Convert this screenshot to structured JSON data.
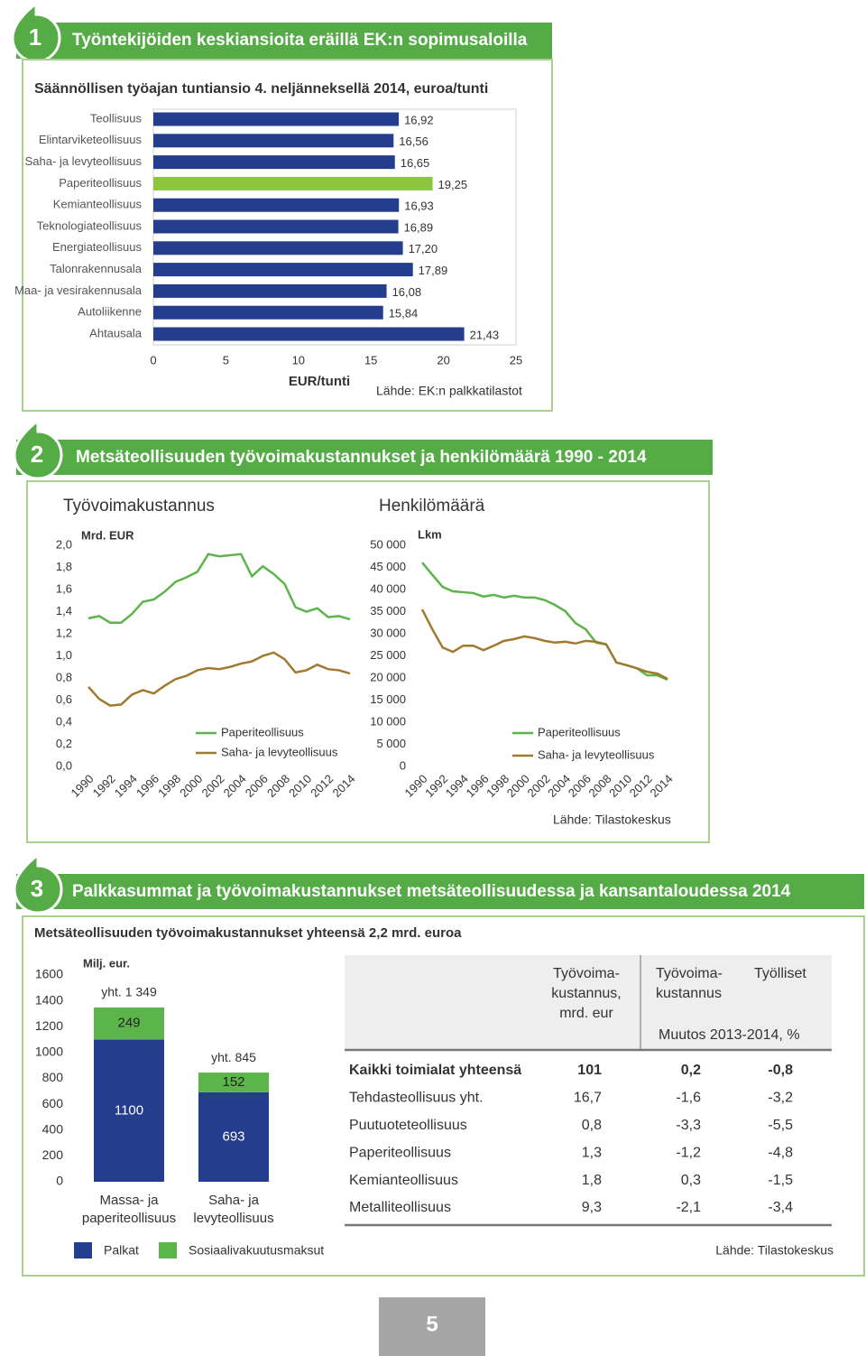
{
  "sections": [
    {
      "number": "1",
      "title": "Työntekijöiden keskiansioita eräillä EK:n sopimusaloilla"
    },
    {
      "number": "2",
      "title": "Metsäteollisuuden työvoimakustannukset ja henkilömäärä 1990 - 2014"
    },
    {
      "number": "3",
      "title": "Palkkasummat ja työvoimakustannukset metsäteollisuudessa ja kansantaloudessa 2014"
    }
  ],
  "chart_data": [
    {
      "type": "bar",
      "orientation": "horizontal",
      "title": "Säännöllisen työajan tuntiansio 4. neljänneksellä 2014, euroa/tunti",
      "categories": [
        "Teollisuus",
        "Elintarviketeollisuus",
        "Saha- ja levyteollisuus",
        "Paperiteollisuus",
        "Kemianteollisuus",
        "Teknologiateollisuus",
        "Energiateollisuus",
        "Talonrakennusala",
        "Maa- ja vesirakennusala",
        "Autoliikenne",
        "Ahtausala"
      ],
      "values": [
        16.92,
        16.56,
        16.65,
        19.25,
        16.93,
        16.89,
        17.2,
        17.89,
        16.08,
        15.84,
        21.43
      ],
      "value_labels": [
        "16,92",
        "16,56",
        "16,65",
        "19,25",
        "16,93",
        "16,89",
        "17,20",
        "17,89",
        "16,08",
        "15,84",
        "21,43"
      ],
      "colors": [
        "#253d8d",
        "#253d8d",
        "#253d8d",
        "#8cc63f",
        "#253d8d",
        "#253d8d",
        "#253d8d",
        "#253d8d",
        "#253d8d",
        "#253d8d",
        "#253d8d"
      ],
      "xlim": [
        0,
        25
      ],
      "xticks": [
        0,
        5,
        10,
        15,
        20,
        25
      ],
      "xlabel": "EUR/tunti",
      "source": "Lähde: EK:n palkkatilastot"
    },
    {
      "type": "line",
      "title": "Työvoimakustannus",
      "units": "Mrd. EUR",
      "x": [
        1990,
        1991,
        1992,
        1993,
        1994,
        1995,
        1996,
        1997,
        1998,
        1999,
        2000,
        2001,
        2002,
        2003,
        2004,
        2005,
        2006,
        2007,
        2008,
        2009,
        2010,
        2011,
        2012,
        2013,
        2014
      ],
      "xlim": [
        1990,
        2014
      ],
      "xticks": [
        1990,
        1992,
        1994,
        1996,
        1998,
        2000,
        2002,
        2004,
        2006,
        2008,
        2010,
        2012,
        2014
      ],
      "ylim": [
        0,
        2.0
      ],
      "yticks": [
        {
          "value": 0,
          "label": "0,0"
        },
        {
          "value": 0.2,
          "label": "0,2"
        },
        {
          "value": 0.4,
          "label": "0,4"
        },
        {
          "value": 0.6,
          "label": "0,6"
        },
        {
          "value": 0.8,
          "label": "0,8"
        },
        {
          "value": 1.0,
          "label": "1,0"
        },
        {
          "value": 1.2,
          "label": "1,2"
        },
        {
          "value": 1.4,
          "label": "1,4"
        },
        {
          "value": 1.6,
          "label": "1,6"
        },
        {
          "value": 1.8,
          "label": "1,8"
        },
        {
          "value": 2.0,
          "label": "2,0"
        }
      ],
      "series": [
        {
          "name": "Paperiteollisuus",
          "color": "#5cb54a",
          "values": [
            1.34,
            1.36,
            1.3,
            1.3,
            1.38,
            1.49,
            1.51,
            1.58,
            1.67,
            1.71,
            1.76,
            1.92,
            1.9,
            1.91,
            1.92,
            1.72,
            1.81,
            1.74,
            1.65,
            1.44,
            1.4,
            1.43,
            1.35,
            1.36,
            1.33
          ]
        },
        {
          "name": "Saha- ja levyteollisuus",
          "color": "#a07a2e",
          "values": [
            0.72,
            0.61,
            0.55,
            0.56,
            0.65,
            0.69,
            0.66,
            0.73,
            0.79,
            0.82,
            0.87,
            0.89,
            0.88,
            0.9,
            0.93,
            0.95,
            1.0,
            1.03,
            0.97,
            0.85,
            0.87,
            0.92,
            0.88,
            0.87,
            0.84
          ]
        }
      ]
    },
    {
      "type": "line",
      "title": "Henkilömäärä",
      "units": "Lkm",
      "x": [
        1990,
        1991,
        1992,
        1993,
        1994,
        1995,
        1996,
        1997,
        1998,
        1999,
        2000,
        2001,
        2002,
        2003,
        2004,
        2005,
        2006,
        2007,
        2008,
        2009,
        2010,
        2011,
        2012,
        2013,
        2014
      ],
      "xlim": [
        1990,
        2014
      ],
      "xticks": [
        1990,
        1992,
        1994,
        1996,
        1998,
        2000,
        2002,
        2004,
        2006,
        2008,
        2010,
        2012,
        2014
      ],
      "ylim": [
        0,
        50000
      ],
      "yticks": [
        0,
        {
          "value": 5000,
          "label": "5 000"
        },
        {
          "value": 10000,
          "label": "10 000"
        },
        {
          "value": 15000,
          "label": "15 000"
        },
        {
          "value": 20000,
          "label": "20 000"
        },
        {
          "value": 25000,
          "label": "25 000"
        },
        {
          "value": 30000,
          "label": "30 000"
        },
        {
          "value": 35000,
          "label": "35 000"
        },
        {
          "value": 40000,
          "label": "40 000"
        },
        {
          "value": 45000,
          "label": "45 000"
        },
        {
          "value": 50000,
          "label": "50 000"
        }
      ],
      "series": [
        {
          "name": "Paperiteollisuus",
          "color": "#5cb54a",
          "values": [
            46100,
            43300,
            40600,
            39600,
            39400,
            39200,
            38400,
            38800,
            38200,
            38600,
            38200,
            38200,
            37600,
            36500,
            35100,
            32400,
            31000,
            28000,
            27600,
            23500,
            22900,
            22200,
            20600,
            20600,
            19600
          ]
        },
        {
          "name": "Saha- ja levyteollisuus",
          "color": "#a07a2e",
          "values": [
            35500,
            31000,
            26900,
            25900,
            27300,
            27300,
            26300,
            27300,
            28400,
            28800,
            29400,
            29000,
            28400,
            28000,
            28200,
            27800,
            28400,
            28200,
            27600,
            23500,
            22900,
            22200,
            21400,
            21000,
            19800
          ]
        }
      ],
      "source": "Lähde: Tilastokeskus"
    },
    {
      "type": "stacked_bar",
      "title": "Metsäteollisuuden työvoimakustannukset yhteensä 2,2 mrd. euroa",
      "units": "Milj. eur.",
      "categories": [
        "Massa- ja paperiteollisuus",
        "Saha- ja levyteollisuus"
      ],
      "series": [
        {
          "name": "Palkat",
          "color": "#253d8d",
          "values": [
            1100,
            693
          ]
        },
        {
          "name": "Sosiaalivakuutusmaksut",
          "color": "#5cb54a",
          "values": [
            249,
            152
          ]
        }
      ],
      "total_labels": [
        "yht. 1 349",
        "yht. 845"
      ],
      "ylim": [
        0,
        1600
      ],
      "yticks": [
        0,
        200,
        400,
        600,
        800,
        1000,
        1200,
        1400,
        1600
      ],
      "source": "Lähde: Tilastokeskus"
    }
  ],
  "table": {
    "header": [
      "Työvoima-kustannus, mrd. eur",
      "Työvoima-kustannus",
      "Työlliset"
    ],
    "subheader": "Muutos 2013-2014, %",
    "rows": [
      [
        "Kaikki toimialat yhteensä",
        "101",
        "0,2",
        "-0,8"
      ],
      [
        "Tehdasteollisuus yht.",
        "16,7",
        "-1,6",
        "-3,2"
      ],
      [
        "Puutuoteteollisuus",
        "0,8",
        "-3,3",
        "-5,5"
      ],
      [
        "Paperiteollisuus",
        "1,3",
        "-1,2",
        "-4,8"
      ],
      [
        "Kemianteollisuus",
        "1,8",
        "0,3",
        "-1,5"
      ],
      [
        "Metalliteollisuus",
        "9,3",
        "-2,1",
        "-3,4"
      ]
    ]
  },
  "page_number": "5"
}
